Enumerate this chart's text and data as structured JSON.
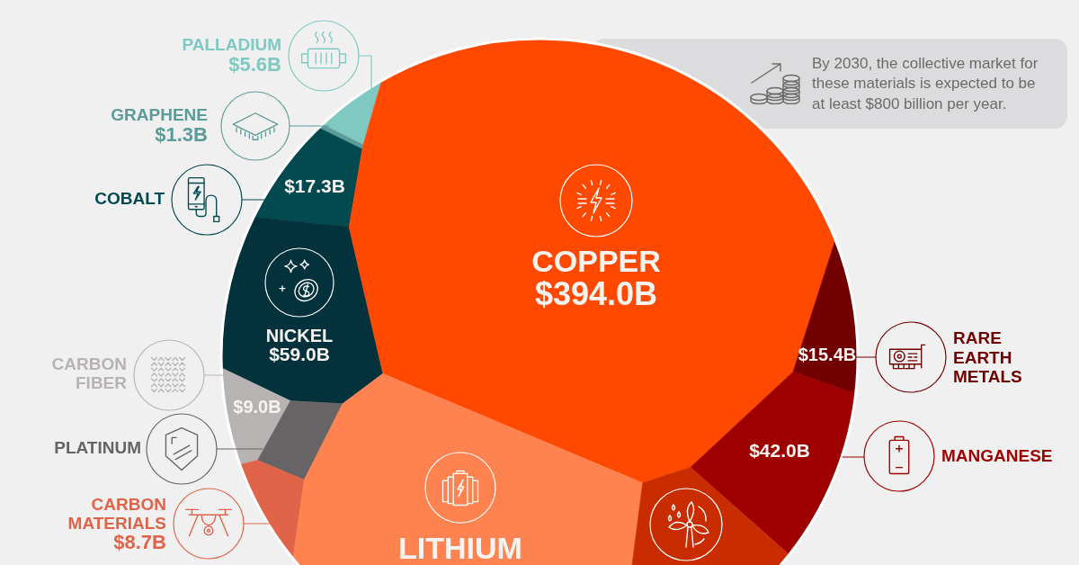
{
  "chart_data": {
    "type": "other",
    "categories": [
      "PALLADIUM",
      "GRAPHENE",
      "COBALT",
      "NICKEL",
      "CARBON FIBER",
      "PLATINUM",
      "CARBON MATERIALS",
      "COPPER",
      "RARE EARTH METALS",
      "MANGANESE",
      "LITHIUM",
      null
    ],
    "values": [
      5.6,
      1.3,
      17.3,
      59.0,
      9.0,
      null,
      8.7,
      394.0,
      15.4,
      42.0,
      null,
      null
    ],
    "value_labels": [
      "$5.6B",
      "$1.3B",
      "$17.3B",
      "$59.0B",
      "$9.0B",
      null,
      "$8.7B",
      "$394.0B",
      "$15.4B",
      "$42.0B",
      null,
      null
    ],
    "colors": [
      "#7fc9c2",
      "#5c9c98",
      "#024a50",
      "#03323d",
      "#b8b3b3",
      "#676465",
      "#e0644a",
      "#ff4800",
      "#720000",
      "#9e0000",
      "#ff8350",
      "#c92c00"
    ],
    "annotations": [
      "By 2030, the collective market for these materials is expected to be at least $800 billion per year."
    ]
  }
}
